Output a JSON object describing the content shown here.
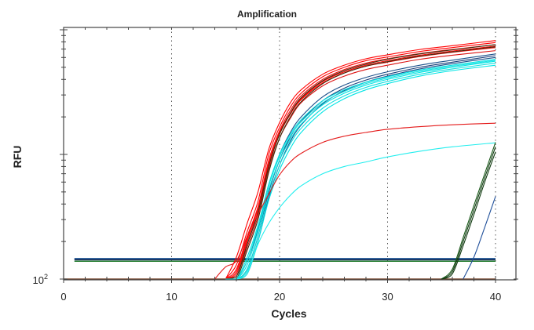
{
  "chart_data": {
    "type": "line",
    "title": "Amplification",
    "xlabel": "Cycles",
    "ylabel": "RFU",
    "xlim": [
      0,
      42
    ],
    "ylim": [
      100,
      10400
    ],
    "yscale": "log",
    "grid": "vertical dotted at x ticks",
    "x_ticks": [
      0,
      10,
      20,
      30,
      40
    ],
    "x_tick_labels": [
      "0",
      "10",
      "20",
      "30",
      "40"
    ],
    "y_tick_label": {
      "base": "10",
      "exponent": "2"
    },
    "thresholds": [
      {
        "value": 146,
        "x": [
          1,
          40
        ],
        "color": "#1f5a9a"
      },
      {
        "value": 143,
        "x": [
          1,
          40
        ],
        "color": "#1a2f5a"
      },
      {
        "value": 139,
        "x": [
          1,
          40
        ],
        "color": "#1f7a2a"
      }
    ],
    "series": [
      {
        "color": "#ff0000",
        "x": [
          15,
          16,
          17,
          18,
          19,
          20,
          21,
          22,
          24,
          26,
          28,
          30,
          33,
          36,
          40
        ],
        "y": [
          100,
          150,
          280,
          500,
          1100,
          1800,
          2600,
          3300,
          4400,
          5200,
          5850,
          6300,
          6950,
          7450,
          8200
        ]
      },
      {
        "color": "#ff0000",
        "x": [
          15,
          16,
          17,
          18,
          19,
          20,
          21,
          22,
          24,
          26,
          28,
          30,
          33,
          36,
          40
        ],
        "y": [
          100,
          130,
          240,
          420,
          1000,
          1650,
          2400,
          3100,
          4200,
          5000,
          5650,
          6050,
          6700,
          7200,
          7900
        ]
      },
      {
        "color": "#ee1010",
        "x": [
          15,
          16,
          17,
          18,
          19,
          20,
          21,
          22,
          24,
          26,
          28,
          30,
          33,
          36,
          40
        ],
        "y": [
          100,
          120,
          220,
          380,
          900,
          1550,
          2250,
          2950,
          4000,
          4800,
          5400,
          5850,
          6450,
          6950,
          7600
        ]
      },
      {
        "color": "#ff0000",
        "x": [
          15,
          16,
          17,
          18,
          19,
          20,
          21,
          22,
          24,
          26,
          28,
          30,
          33,
          36,
          40
        ],
        "y": [
          100,
          110,
          200,
          350,
          820,
          1450,
          2100,
          2750,
          3750,
          4500,
          5100,
          5500,
          6100,
          6600,
          7200
        ]
      },
      {
        "color": "#dd1111",
        "x": [
          15,
          16,
          17,
          18,
          19,
          20,
          21,
          22,
          24,
          26,
          28,
          30,
          33,
          36,
          40
        ],
        "y": [
          100,
          105,
          180,
          320,
          760,
          1350,
          1950,
          2600,
          3550,
          4250,
          4800,
          5200,
          5800,
          6250,
          6800
        ]
      },
      {
        "color": "#ff0000",
        "x": [
          15,
          16,
          17,
          18,
          19,
          20,
          21,
          22,
          24,
          26,
          28,
          30,
          33,
          36,
          40
        ],
        "y": [
          100,
          115,
          210,
          370,
          850,
          1500,
          2150,
          2800,
          3850,
          4600,
          5200,
          5650,
          6250,
          6750,
          7400
        ]
      },
      {
        "color": "#3a3010",
        "x": [
          15,
          16,
          17,
          18,
          19,
          20,
          21,
          22,
          24,
          26,
          28,
          30,
          33,
          36,
          40
        ],
        "y": [
          100,
          105,
          190,
          340,
          800,
          1450,
          2150,
          2850,
          3900,
          4700,
          5300,
          5800,
          6400,
          6900,
          7600
        ]
      },
      {
        "color": "#3a3010",
        "x": [
          15,
          16,
          17,
          18,
          19,
          20,
          21,
          22,
          24,
          26,
          28,
          30,
          33,
          36,
          40
        ],
        "y": [
          100,
          100,
          170,
          300,
          720,
          1350,
          2000,
          2650,
          3700,
          4500,
          5100,
          5550,
          6150,
          6650,
          7300
        ]
      },
      {
        "color": "#1a4f8a",
        "x": [
          15,
          16,
          17,
          18,
          19,
          20,
          21,
          22,
          24,
          26,
          28,
          30,
          33,
          36,
          40
        ],
        "y": [
          100,
          100,
          140,
          250,
          560,
          1000,
          1500,
          2000,
          2900,
          3600,
          4150,
          4600,
          5200,
          5700,
          6400
        ]
      },
      {
        "color": "#1a3f7a",
        "x": [
          15,
          16,
          17,
          18,
          19,
          20,
          21,
          22,
          24,
          26,
          28,
          30,
          33,
          36,
          40
        ],
        "y": [
          100,
          100,
          120,
          220,
          500,
          900,
          1380,
          1850,
          2700,
          3400,
          3950,
          4400,
          5000,
          5500,
          6200
        ]
      },
      {
        "color": "#1a4f8a",
        "x": [
          15,
          16,
          17,
          18,
          19,
          20,
          21,
          22,
          24,
          26,
          28,
          30,
          33,
          36,
          40
        ],
        "y": [
          100,
          100,
          110,
          200,
          450,
          820,
          1270,
          1720,
          2550,
          3250,
          3800,
          4250,
          4850,
          5350,
          6000
        ]
      },
      {
        "color": "#00e5e5",
        "x": [
          15,
          16,
          17,
          18,
          19,
          20,
          21,
          22,
          24,
          26,
          28,
          30,
          33,
          36,
          40
        ],
        "y": [
          100,
          100,
          150,
          270,
          580,
          1000,
          1450,
          1900,
          2700,
          3300,
          3800,
          4200,
          4750,
          5200,
          5800
        ]
      },
      {
        "color": "#00e5e5",
        "x": [
          15,
          16,
          17,
          18,
          19,
          20,
          21,
          22,
          24,
          26,
          28,
          30,
          33,
          36,
          40
        ],
        "y": [
          100,
          100,
          130,
          240,
          520,
          900,
          1320,
          1750,
          2500,
          3100,
          3600,
          4000,
          4550,
          5000,
          5600
        ]
      },
      {
        "color": "#10dede",
        "x": [
          15,
          16,
          17,
          18,
          19,
          20,
          21,
          22,
          24,
          26,
          28,
          30,
          33,
          36,
          40
        ],
        "y": [
          100,
          100,
          120,
          220,
          470,
          820,
          1220,
          1620,
          2350,
          2950,
          3450,
          3850,
          4400,
          4850,
          5400
        ]
      },
      {
        "color": "#00e5e5",
        "x": [
          15,
          16,
          17,
          18,
          19,
          20,
          21,
          22,
          24,
          26,
          28,
          30,
          33,
          36,
          40
        ],
        "y": [
          100,
          100,
          115,
          200,
          430,
          750,
          1120,
          1500,
          2200,
          2800,
          3300,
          3700,
          4250,
          4700,
          5200
        ]
      },
      {
        "color": "#20e0e0",
        "x": [
          15,
          16,
          17,
          18,
          19,
          20,
          21,
          22,
          24,
          26,
          28,
          30,
          33,
          36,
          40
        ],
        "y": [
          100,
          100,
          140,
          260,
          560,
          960,
          1400,
          1830,
          2600,
          3200,
          3700,
          4100,
          4650,
          5100,
          5700
        ]
      },
      {
        "color": "#e41a1a",
        "x": [
          14,
          15,
          16,
          17,
          18,
          19,
          20,
          21,
          22,
          24,
          26,
          28,
          30,
          33,
          36,
          40
        ],
        "y": [
          100,
          125,
          140,
          220,
          330,
          480,
          685,
          870,
          1020,
          1250,
          1400,
          1500,
          1590,
          1670,
          1730,
          1780
        ]
      },
      {
        "color": "#22eeee",
        "x": [
          15,
          16,
          17,
          18,
          19,
          20,
          21,
          22,
          24,
          26,
          28,
          30,
          33,
          36,
          40
        ],
        "y": [
          100,
          100,
          110,
          190,
          280,
          374,
          470,
          560,
          700,
          800,
          870,
          955,
          1060,
          1150,
          1240
        ]
      },
      {
        "color": "#0f3a0f",
        "x": [
          35,
          36,
          37,
          38,
          39,
          40
        ],
        "y": [
          100,
          115,
          200,
          360,
          650,
          1150
        ]
      },
      {
        "color": "#1a5a1a",
        "x": [
          35,
          36,
          37,
          38,
          39,
          40
        ],
        "y": [
          100,
          120,
          215,
          390,
          700,
          1250
        ]
      },
      {
        "color": "#0f3a0f",
        "x": [
          35,
          36,
          37,
          38,
          39,
          40
        ],
        "y": [
          100,
          110,
          185,
          330,
          600,
          1050
        ]
      },
      {
        "color": "#1f4f9a",
        "x": [
          37,
          38,
          39,
          40
        ],
        "y": [
          100,
          150,
          260,
          460
        ]
      }
    ]
  }
}
